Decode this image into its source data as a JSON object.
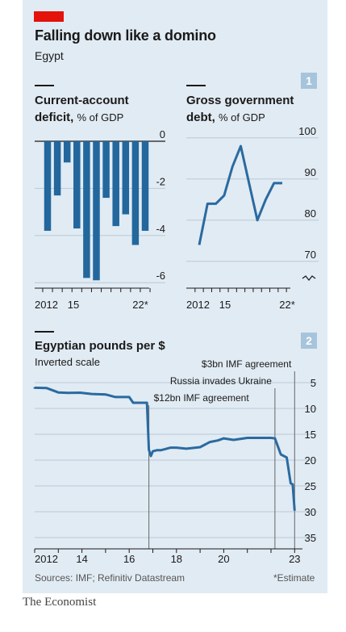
{
  "title": "Falling down like a domino",
  "subtitle": "Egypt",
  "panel1": {
    "badge": "1",
    "left_chart": {
      "title_line1": "Current-account",
      "title_line2_bold": "deficit,",
      "title_line2_unit": "% of GDP"
    },
    "right_chart": {
      "title_line1": "Gross government",
      "title_line2_bold": "debt,",
      "title_line2_unit": "% of GDP"
    }
  },
  "panel2": {
    "badge": "2",
    "title": "Egyptian pounds per $",
    "note": "Inverted scale"
  },
  "sources": "Sources: IMF; Refinitiv Datastream",
  "estimate_note": "*Estimate",
  "brand": "The Economist",
  "colors": {
    "line": "#2a6aa0",
    "bar": "#23679d",
    "red_tag": "#e3120b",
    "panel": "#e1ebf3",
    "badge": "#a6c4dc"
  },
  "chart_data": [
    {
      "type": "bar",
      "categories": [
        "2012",
        "2013",
        "2014",
        "2015",
        "2016",
        "2017",
        "2018",
        "2019",
        "2020",
        "2021",
        "2022*"
      ],
      "values": [
        -3.8,
        -2.3,
        -0.9,
        -3.7,
        -5.8,
        -5.9,
        -2.4,
        -3.6,
        -3.1,
        -4.4,
        -3.8
      ],
      "x_tick_labels": [
        "2012",
        "15",
        "22*"
      ],
      "y_tick_labels": [
        "0",
        "-2",
        "-4",
        "-6"
      ],
      "ylim": [
        -6,
        0
      ],
      "grid": true
    },
    {
      "type": "line",
      "x": [
        "2012",
        "2013",
        "2014",
        "2015",
        "2016",
        "2017",
        "2018",
        "2019",
        "2020",
        "2021",
        "2022*"
      ],
      "values": [
        74,
        84,
        84,
        86,
        93,
        98,
        89,
        80,
        85,
        89,
        89
      ],
      "x_tick_labels": [
        "2012",
        "15",
        "22*"
      ],
      "y_tick_labels": [
        "100",
        "90",
        "80",
        "70"
      ],
      "ylim": [
        68,
        100
      ],
      "axis_break": true,
      "grid": true
    },
    {
      "type": "line",
      "inverted_y": true,
      "x": [
        "2011-01",
        "2011-07",
        "2012-01",
        "2012-07",
        "2013-01",
        "2013-06",
        "2013-12",
        "2014-06",
        "2015-01",
        "2015-06",
        "2016-01",
        "2016-03",
        "2016-06",
        "2016-10",
        "2016-11",
        "2016-12",
        "2017-01",
        "2017-03",
        "2017-05",
        "2017-07",
        "2017-10",
        "2018-01",
        "2018-06",
        "2019-01",
        "2019-06",
        "2019-10",
        "2020-01",
        "2020-06",
        "2021-01",
        "2021-06",
        "2022-01",
        "2022-03",
        "2022-06",
        "2022-09",
        "2022-11",
        "2022-12",
        "2023-01"
      ],
      "values": [
        5.9,
        5.95,
        6.0,
        6.05,
        6.9,
        7.0,
        6.95,
        7.2,
        7.3,
        7.8,
        7.8,
        8.9,
        8.9,
        8.9,
        18.0,
        19.2,
        18.3,
        18.1,
        18.1,
        17.9,
        17.6,
        17.6,
        17.8,
        17.5,
        16.5,
        16.2,
        15.8,
        16.1,
        15.7,
        15.7,
        15.7,
        15.8,
        18.9,
        19.5,
        24.5,
        24.7,
        29.8
      ],
      "x_tick_labels": [
        "2012",
        "14",
        "16",
        "18",
        "20",
        "23"
      ],
      "y_tick_labels": [
        "5",
        "10",
        "15",
        "20",
        "25",
        "30",
        "35"
      ],
      "ylim": [
        5,
        35
      ],
      "annotations": [
        {
          "x": "2016-11",
          "label": "$12bn IMF agreement"
        },
        {
          "x": "2022-03",
          "label": "Russia invades Ukraine"
        },
        {
          "x": "2023-01",
          "label": "$3bn IMF agreement"
        }
      ]
    }
  ]
}
